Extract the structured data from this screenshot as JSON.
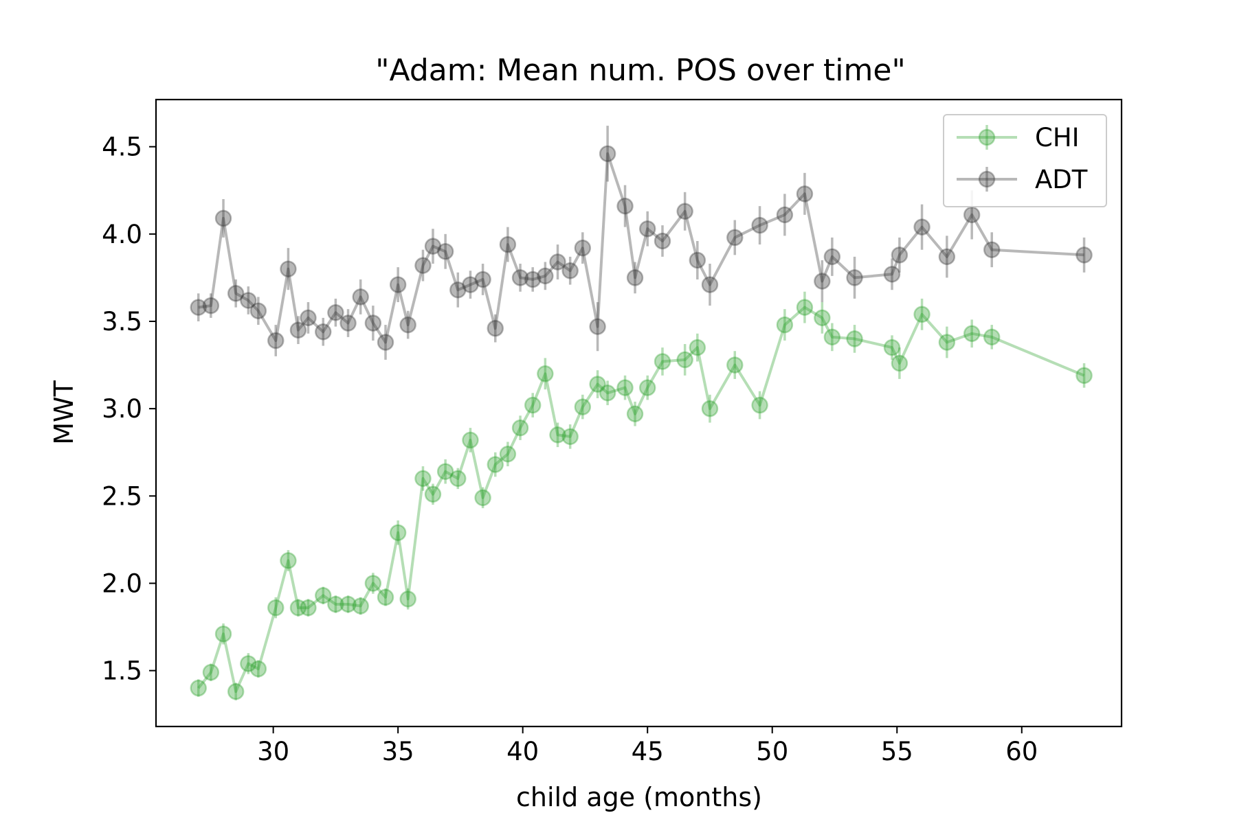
{
  "chart_data": {
    "type": "line",
    "title": "\"Adam: Mean num. POS over time\"",
    "xlabel": "child age (months)",
    "ylabel": "MWT",
    "xlim": [
      25.3,
      64.0
    ],
    "ylim": [
      1.18,
      4.77
    ],
    "xticks": [
      30,
      35,
      40,
      45,
      50,
      55,
      60
    ],
    "yticks": [
      1.5,
      2.0,
      2.5,
      3.0,
      3.5,
      4.0,
      4.5
    ],
    "xtick_labels": [
      "30",
      "35",
      "40",
      "45",
      "50",
      "55",
      "60"
    ],
    "ytick_labels": [
      "1.5",
      "2.0",
      "2.5",
      "3.0",
      "3.5",
      "4.0",
      "4.5"
    ],
    "legend_position": "top-right",
    "grid": false,
    "series": [
      {
        "name": "CHI",
        "color": "#2ca02c",
        "x": [
          27.0,
          27.5,
          28.0,
          28.5,
          29.0,
          29.4,
          30.1,
          30.6,
          31.0,
          31.4,
          32.0,
          32.5,
          33.0,
          33.5,
          34.0,
          34.5,
          35.0,
          35.4,
          36.0,
          36.4,
          36.9,
          37.4,
          37.9,
          38.4,
          38.9,
          39.4,
          39.9,
          40.4,
          40.9,
          41.4,
          41.9,
          42.4,
          43.0,
          43.4,
          44.1,
          44.5,
          45.0,
          45.6,
          46.5,
          47.0,
          47.5,
          48.5,
          49.5,
          50.5,
          51.3,
          52.0,
          52.4,
          53.3,
          54.8,
          55.1,
          56.0,
          57.0,
          58.0,
          58.8,
          62.5
        ],
        "y": [
          1.4,
          1.49,
          1.71,
          1.38,
          1.54,
          1.51,
          1.86,
          2.13,
          1.86,
          1.86,
          1.93,
          1.88,
          1.88,
          1.87,
          2.0,
          1.92,
          2.29,
          1.91,
          2.6,
          2.51,
          2.64,
          2.6,
          2.82,
          2.49,
          2.68,
          2.74,
          2.89,
          3.02,
          3.2,
          2.85,
          2.84,
          3.01,
          3.14,
          3.09,
          3.12,
          2.97,
          3.12,
          3.27,
          3.28,
          3.35,
          3.0,
          3.25,
          3.02,
          3.48,
          3.58,
          3.52,
          3.41,
          3.4,
          3.35,
          3.26,
          3.54,
          3.38,
          3.43,
          3.41,
          3.19
        ],
        "err": [
          0.05,
          0.05,
          0.06,
          0.05,
          0.06,
          0.05,
          0.06,
          0.06,
          0.05,
          0.05,
          0.05,
          0.05,
          0.05,
          0.05,
          0.06,
          0.05,
          0.07,
          0.06,
          0.07,
          0.06,
          0.07,
          0.06,
          0.07,
          0.06,
          0.07,
          0.07,
          0.07,
          0.07,
          0.09,
          0.07,
          0.07,
          0.07,
          0.08,
          0.07,
          0.07,
          0.07,
          0.07,
          0.08,
          0.09,
          0.08,
          0.08,
          0.08,
          0.08,
          0.09,
          0.09,
          0.09,
          0.08,
          0.08,
          0.07,
          0.09,
          0.09,
          0.09,
          0.08,
          0.07,
          0.07
        ]
      },
      {
        "name": "ADT",
        "color": "#333333",
        "x": [
          27.0,
          27.5,
          28.0,
          28.5,
          29.0,
          29.4,
          30.1,
          30.6,
          31.0,
          31.4,
          32.0,
          32.5,
          33.0,
          33.5,
          34.0,
          34.5,
          35.0,
          35.4,
          36.0,
          36.4,
          36.9,
          37.4,
          37.9,
          38.4,
          38.9,
          39.4,
          39.9,
          40.4,
          40.9,
          41.4,
          41.9,
          42.4,
          43.0,
          43.4,
          44.1,
          44.5,
          45.0,
          45.6,
          46.5,
          47.0,
          47.5,
          48.5,
          49.5,
          50.5,
          51.3,
          52.0,
          52.4,
          53.3,
          54.8,
          55.1,
          56.0,
          57.0,
          58.0,
          58.8,
          62.5
        ],
        "y": [
          3.58,
          3.59,
          4.09,
          3.66,
          3.62,
          3.56,
          3.39,
          3.8,
          3.45,
          3.52,
          3.44,
          3.55,
          3.49,
          3.64,
          3.49,
          3.38,
          3.71,
          3.48,
          3.82,
          3.93,
          3.9,
          3.68,
          3.71,
          3.74,
          3.46,
          3.94,
          3.75,
          3.74,
          3.76,
          3.84,
          3.79,
          3.92,
          3.47,
          4.46,
          4.16,
          3.75,
          4.03,
          3.96,
          4.13,
          3.85,
          3.71,
          3.98,
          4.05,
          4.11,
          4.23,
          3.73,
          3.87,
          3.75,
          3.77,
          3.88,
          4.04,
          3.87,
          4.11,
          3.91,
          3.88
        ],
        "err": [
          0.08,
          0.07,
          0.11,
          0.08,
          0.08,
          0.08,
          0.09,
          0.12,
          0.08,
          0.09,
          0.08,
          0.08,
          0.08,
          0.1,
          0.1,
          0.1,
          0.1,
          0.08,
          0.09,
          0.1,
          0.1,
          0.1,
          0.08,
          0.09,
          0.08,
          0.1,
          0.08,
          0.07,
          0.08,
          0.1,
          0.08,
          0.09,
          0.14,
          0.16,
          0.12,
          0.09,
          0.1,
          0.09,
          0.11,
          0.11,
          0.12,
          0.1,
          0.11,
          0.12,
          0.12,
          0.12,
          0.11,
          0.12,
          0.09,
          0.1,
          0.13,
          0.12,
          0.14,
          0.1,
          0.1
        ]
      }
    ]
  }
}
